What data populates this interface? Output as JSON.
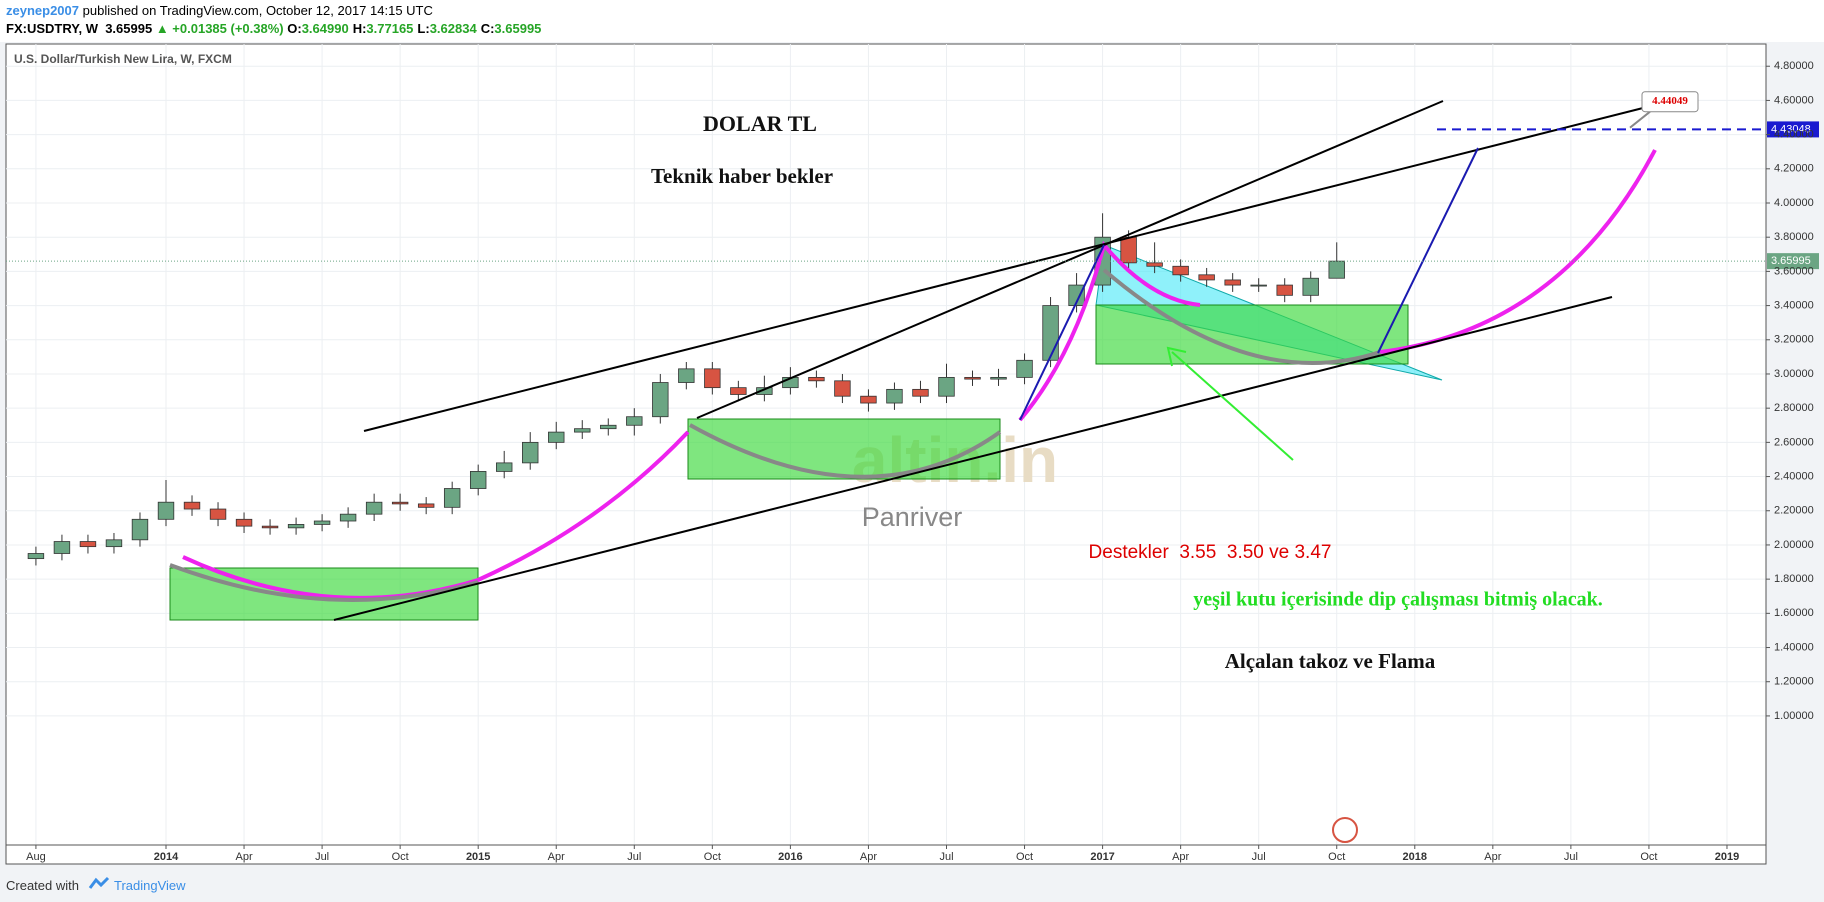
{
  "header": {
    "author": "zeynep2007",
    "published": "published on TradingView.com, October 12, 2017 14:15 UTC",
    "symbol": "FX:USDTRY, W",
    "last": "3.65995",
    "change": "▲ +0.01385 (+0.38%)",
    "ohlc": [
      {
        "label": "O:",
        "value": "3.64990"
      },
      {
        "label": "H:",
        "value": "3.77165"
      },
      {
        "label": "L:",
        "value": "3.62834"
      },
      {
        "label": "C:",
        "value": "3.65995"
      }
    ]
  },
  "chart_data": {
    "type": "candlestick",
    "title": "U.S. Dollar/Turkish New Lira, W, FXCM",
    "x": [
      -5,
      -4,
      -3,
      -2,
      -1,
      0,
      1,
      2,
      3,
      4,
      5,
      6,
      7,
      8,
      9,
      10,
      11,
      12,
      13,
      14,
      15,
      16,
      17,
      18,
      19,
      20,
      21,
      22,
      23,
      24,
      25,
      26,
      27,
      28,
      29,
      30,
      31,
      32,
      33,
      34,
      35,
      36,
      37,
      38,
      39,
      40,
      41,
      42,
      43,
      44,
      45
    ],
    "open": [
      1.92,
      1.95,
      2.02,
      1.99,
      2.03,
      2.15,
      2.25,
      2.21,
      2.15,
      2.11,
      2.1,
      2.12,
      2.14,
      2.18,
      2.25,
      2.24,
      2.22,
      2.33,
      2.43,
      2.48,
      2.6,
      2.66,
      2.68,
      2.7,
      2.75,
      2.95,
      3.03,
      2.92,
      2.88,
      2.92,
      2.98,
      2.96,
      2.87,
      2.83,
      2.91,
      2.87,
      2.98,
      2.97,
      2.98,
      3.08,
      3.4,
      3.52,
      3.8,
      3.65,
      3.63,
      3.58,
      3.55,
      3.52,
      3.52,
      3.46,
      3.56
    ],
    "high": [
      1.99,
      2.06,
      2.06,
      2.07,
      2.19,
      2.38,
      2.29,
      2.25,
      2.19,
      2.15,
      2.16,
      2.18,
      2.22,
      2.3,
      2.3,
      2.28,
      2.37,
      2.47,
      2.55,
      2.66,
      2.72,
      2.73,
      2.74,
      2.8,
      3.0,
      3.07,
      3.07,
      2.96,
      2.99,
      3.04,
      3.02,
      3.0,
      2.91,
      2.95,
      2.96,
      3.06,
      3.02,
      3.03,
      3.12,
      3.45,
      3.59,
      3.94,
      3.84,
      3.77,
      3.67,
      3.62,
      3.59,
      3.56,
      3.56,
      3.6,
      3.77
    ],
    "low": [
      1.88,
      1.91,
      1.95,
      1.95,
      1.99,
      2.11,
      2.17,
      2.11,
      2.07,
      2.06,
      2.06,
      2.08,
      2.1,
      2.14,
      2.2,
      2.18,
      2.18,
      2.29,
      2.39,
      2.44,
      2.56,
      2.62,
      2.64,
      2.64,
      2.71,
      2.91,
      2.88,
      2.84,
      2.84,
      2.88,
      2.92,
      2.83,
      2.78,
      2.79,
      2.83,
      2.83,
      2.93,
      2.93,
      2.94,
      3.04,
      3.36,
      3.48,
      3.61,
      3.59,
      3.54,
      3.51,
      3.48,
      3.48,
      3.42,
      3.42,
      3.56
    ],
    "close": [
      1.95,
      2.02,
      1.99,
      2.03,
      2.15,
      2.25,
      2.21,
      2.15,
      2.11,
      2.1,
      2.12,
      2.14,
      2.18,
      2.25,
      2.24,
      2.22,
      2.33,
      2.43,
      2.48,
      2.6,
      2.66,
      2.68,
      2.7,
      2.75,
      2.95,
      3.03,
      2.92,
      2.88,
      2.92,
      2.98,
      2.96,
      2.87,
      2.83,
      2.91,
      2.87,
      2.98,
      2.97,
      2.98,
      3.08,
      3.4,
      3.52,
      3.8,
      3.65,
      3.63,
      3.58,
      3.55,
      3.52,
      3.52,
      3.46,
      3.56,
      3.66
    ],
    "up_color": "#6ba583",
    "down_color": "#d75442",
    "xlim": [
      -6.15,
      61.5
    ],
    "xticks": [
      {
        "value": -5,
        "label": "Aug"
      },
      {
        "value": 0,
        "label": "2014"
      },
      {
        "value": 3,
        "label": "Apr"
      },
      {
        "value": 6,
        "label": "Jul"
      },
      {
        "value": 9,
        "label": "Oct"
      },
      {
        "value": 12,
        "label": "2015"
      },
      {
        "value": 15,
        "label": "Apr"
      },
      {
        "value": 18,
        "label": "Jul"
      },
      {
        "value": 21,
        "label": "Oct"
      },
      {
        "value": 24,
        "label": "2016"
      },
      {
        "value": 27,
        "label": "Apr"
      },
      {
        "value": 30,
        "label": "Jul"
      },
      {
        "value": 33,
        "label": "Oct"
      },
      {
        "value": 36,
        "label": "2017"
      },
      {
        "value": 39,
        "label": "Apr"
      },
      {
        "value": 42,
        "label": "Jul"
      },
      {
        "value": 45,
        "label": "Oct"
      },
      {
        "value": 48,
        "label": "2018"
      },
      {
        "value": 51,
        "label": "Apr"
      },
      {
        "value": 54,
        "label": "Jul"
      },
      {
        "value": 57,
        "label": "Oct"
      },
      {
        "value": 60,
        "label": "2019"
      }
    ],
    "ylim": [
      0.245,
      4.93
    ],
    "yticks": [
      {
        "value": 1.0,
        "label": "1.00000"
      },
      {
        "value": 1.2,
        "label": "1.20000"
      },
      {
        "value": 1.4,
        "label": "1.40000"
      },
      {
        "value": 1.6,
        "label": "1.60000"
      },
      {
        "value": 1.8,
        "label": "1.80000"
      },
      {
        "value": 2.0,
        "label": "2.00000"
      },
      {
        "value": 2.2,
        "label": "2.20000"
      },
      {
        "value": 2.4,
        "label": "2.40000"
      },
      {
        "value": 2.6,
        "label": "2.60000"
      },
      {
        "value": 2.8,
        "label": "2.80000"
      },
      {
        "value": 3.0,
        "label": "3.00000"
      },
      {
        "value": 3.2,
        "label": "3.20000"
      },
      {
        "value": 3.4,
        "label": "3.40000"
      },
      {
        "value": 3.6,
        "label": "3.60000"
      },
      {
        "value": 3.8,
        "label": "3.80000"
      },
      {
        "value": 4.0,
        "label": "4.00000"
      },
      {
        "value": 4.2,
        "label": "4.20000"
      },
      {
        "value": 4.4,
        "label": "4.40000"
      },
      {
        "value": 4.6,
        "label": "4.60000"
      },
      {
        "value": 4.8,
        "label": "4.80000"
      }
    ],
    "grid": true,
    "last_price": 3.65995,
    "target_price": 4.43048,
    "callout_price": 4.44049,
    "annotations": [
      "DOLAR TL",
      "Teknik haber bekler",
      "Destekler  3.55  3.50 ve 3.47",
      "yeşil kutu içerisinde dip çalışması bitmiş olacak.",
      "Alçalan takoz ve Flama",
      "altin.in",
      "Panriver"
    ]
  },
  "footer": {
    "created": "Created with",
    "brand": "TradingView"
  }
}
